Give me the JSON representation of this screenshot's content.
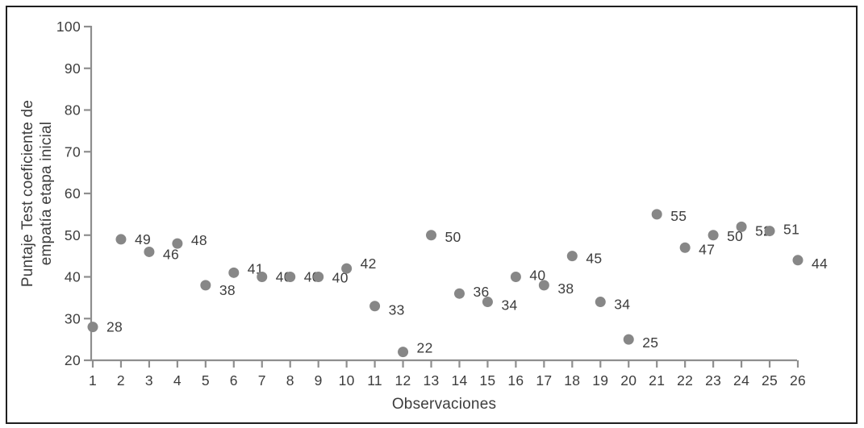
{
  "figure": {
    "background": "#ffffff",
    "border_color": "#1f1f1f"
  },
  "chart_data": {
    "type": "scatter",
    "title": "",
    "xlabel": "Observaciones",
    "ylabel": "Puntaje Test coeficiente de empatía etapa inicial",
    "ylabel_lines": [
      "Puntaje Test coeficiente de",
      "empatía etapa inicial"
    ],
    "categories": [
      1,
      2,
      3,
      4,
      5,
      6,
      7,
      8,
      9,
      10,
      11,
      12,
      13,
      14,
      15,
      16,
      17,
      18,
      19,
      20,
      21,
      22,
      23,
      24,
      25,
      26
    ],
    "values": [
      28,
      49,
      46,
      48,
      38,
      41,
      40,
      40,
      40,
      42,
      33,
      22,
      50,
      36,
      34,
      40,
      38,
      45,
      34,
      25,
      55,
      47,
      50,
      52,
      51,
      44
    ],
    "point_labels": [
      "28",
      "49",
      "46",
      "48",
      "38",
      "41",
      "40",
      "40",
      "40",
      "42",
      "33",
      "22",
      "50",
      "36",
      "34",
      "40",
      "38",
      "45",
      "34",
      "25",
      "55",
      "47",
      "50",
      "52",
      "51",
      "44"
    ],
    "ylim": [
      20,
      100
    ],
    "y_ticks": [
      20,
      30,
      40,
      50,
      60,
      70,
      80,
      90,
      100
    ],
    "grid": false,
    "legend": "none",
    "marker_color": "#878787",
    "axis_color": "#8e8e8e",
    "text_color": "#3d3d3d",
    "point_label_dy": [
      0,
      0,
      3,
      -4,
      6,
      -5,
      0,
      0,
      1,
      -6,
      5,
      -5,
      2,
      -2,
      4,
      -2,
      4,
      3,
      3,
      4,
      2,
      2,
      1,
      5,
      -2,
      4
    ]
  }
}
